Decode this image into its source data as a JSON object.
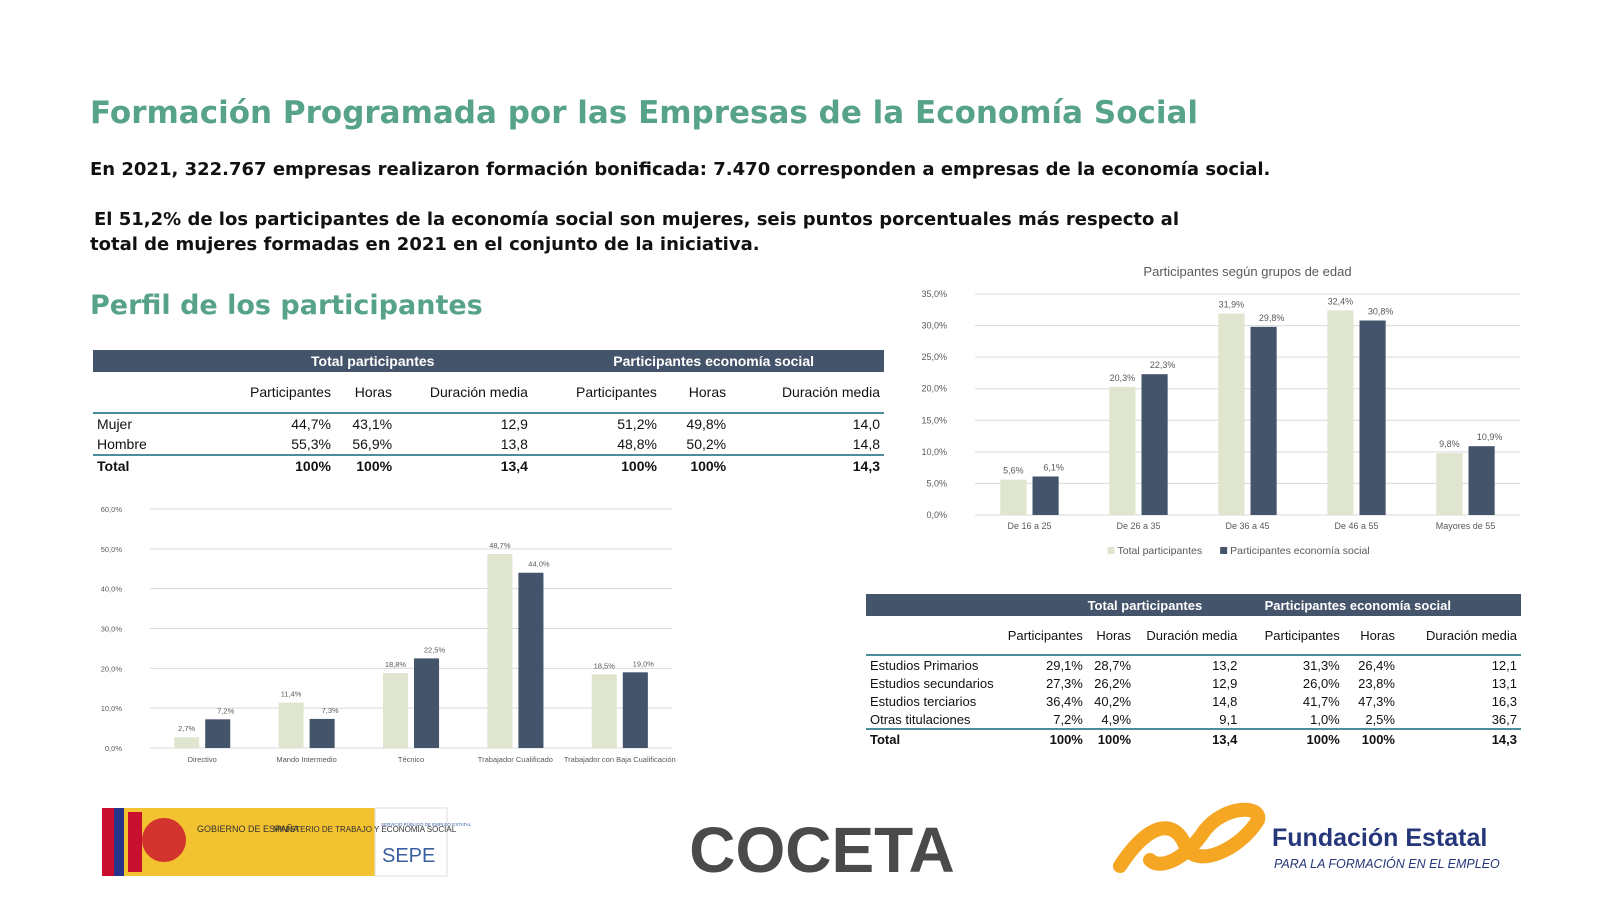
{
  "header": {
    "title": "Formación Programada por las Empresas de la Economía Social"
  },
  "paragraphs": [
    "En 2021, 322.767 empresas realizaron formación bonificada: 7.470 corresponden a empresas de la economía social.",
    "El 51,2% de los participantes de la economía social son mujeres, seis puntos porcentuales más respecto al total de mujeres formadas en 2021 en el conjunto de la iniciativa."
  ],
  "section_title": "Perfil de los participantes",
  "table1": {
    "group_headers": [
      "Total participantes",
      "Participantes economía social"
    ],
    "columns": [
      "Participantes",
      "Horas",
      "Duración media",
      "Participantes",
      "Horas",
      "Duración media"
    ],
    "rows": [
      [
        "Mujer",
        "44,7%",
        "43,1%",
        "12,9",
        "51,2%",
        "49,8%",
        "14,0"
      ],
      [
        "Hombre",
        "55,3%",
        "56,9%",
        "13,8",
        "48,8%",
        "50,2%",
        "14,8"
      ],
      [
        "Total",
        "100%",
        "100%",
        "13,4",
        "100%",
        "100%",
        "14,3"
      ]
    ]
  },
  "chart_data": [
    {
      "type": "bar",
      "title": "Participantes según grupos de edad",
      "categories": [
        "De 16 a 25",
        "De 26 a 35",
        "De 36 a 45",
        "De 46 a 55",
        "Mayores de 55"
      ],
      "series": [
        {
          "name": "Total participantes",
          "color": "#dfe5cf",
          "values": [
            5.6,
            20.3,
            31.9,
            32.4,
            9.8
          ],
          "value_labels": [
            "5,6%",
            "20,3%",
            "31,9%",
            "32,4%",
            "9,8%"
          ]
        },
        {
          "name": "Participantes economía social",
          "color": "#44546a",
          "values": [
            6.1,
            22.3,
            29.8,
            30.8,
            10.9
          ],
          "value_labels": [
            "6,1%",
            "22,3%",
            "29,8%",
            "30,8%",
            "10,9%"
          ]
        }
      ],
      "ylim": [
        0,
        35
      ],
      "yticks": [
        {
          "value": 0,
          "label": "0,0%"
        },
        {
          "value": 5,
          "label": "5,0%"
        },
        {
          "value": 10,
          "label": "10,0%"
        },
        {
          "value": 15,
          "label": "15,0%"
        },
        {
          "value": 20,
          "label": "20,0%"
        },
        {
          "value": 25,
          "label": "25,0%"
        },
        {
          "value": 30,
          "label": "30,0%"
        },
        {
          "value": 35,
          "label": "35,0%"
        }
      ],
      "grid": true,
      "legend": "bottom"
    },
    {
      "type": "bar",
      "categories": [
        "Directivo",
        "Mando Intermedio",
        "Técnico",
        "Trabajador Cualificado",
        "Trabajador con Baja Cualificación"
      ],
      "series": [
        {
          "color": "#dfe5cf",
          "values": [
            2.7,
            11.4,
            18.8,
            48.7,
            18.5
          ],
          "value_labels": [
            "2,7%",
            "11,4%",
            "18,8%",
            "48,7%",
            "18,5%"
          ]
        },
        {
          "color": "#44546a",
          "values": [
            7.2,
            7.3,
            22.5,
            44.0,
            19.0
          ],
          "value_labels": [
            "7,2%",
            "7,3%",
            "22,5%",
            "44,0%",
            "19,0%"
          ]
        }
      ],
      "ylim": [
        0,
        60
      ],
      "yticks": [
        {
          "value": 0,
          "label": "0,0%"
        },
        {
          "value": 10,
          "label": "10,0%"
        },
        {
          "value": 20,
          "label": "20,0%"
        },
        {
          "value": 30,
          "label": "30,0%"
        },
        {
          "value": 40,
          "label": "40,0%"
        },
        {
          "value": 50,
          "label": "50,0%"
        },
        {
          "value": 60,
          "label": "60,0%"
        }
      ],
      "grid": true
    }
  ],
  "table2": {
    "group_headers": [
      "Total participantes",
      "Participantes economía social"
    ],
    "columns": [
      "Participantes",
      "Horas",
      "Duración media",
      "Participantes",
      "Horas",
      "Duración media"
    ],
    "rows": [
      [
        "Estudios Primarios",
        "29,1%",
        "28,7%",
        "13,2",
        "31,3%",
        "26,4%",
        "12,1"
      ],
      [
        "Estudios secundarios",
        "27,3%",
        "26,2%",
        "12,9",
        "26,0%",
        "23,8%",
        "13,1"
      ],
      [
        "Estudios terciarios",
        "36,4%",
        "40,2%",
        "14,8",
        "41,7%",
        "47,3%",
        "16,3"
      ],
      [
        "Otras titulaciones",
        "7,2%",
        "4,9%",
        "9,1",
        "1,0%",
        "2,5%",
        "36,7"
      ],
      [
        "Total",
        "100%",
        "100%",
        "13,4",
        "100%",
        "100%",
        "14,3"
      ]
    ]
  },
  "logos": {
    "gobierno": "GOBIERNO DE ESPAÑA",
    "ministerio": "MINISTERIO DE TRABAJO Y ECONOMÍA SOCIAL",
    "sepe_caption": "SERVICIO PÚBLICO DE EMPLEO ESTATAL",
    "sepe": "SEPE",
    "coceta": "COCETA",
    "fundacion": "Fundación Estatal",
    "fundacion_sub": "PARA LA FORMACIÓN EN EL EMPLEO"
  }
}
